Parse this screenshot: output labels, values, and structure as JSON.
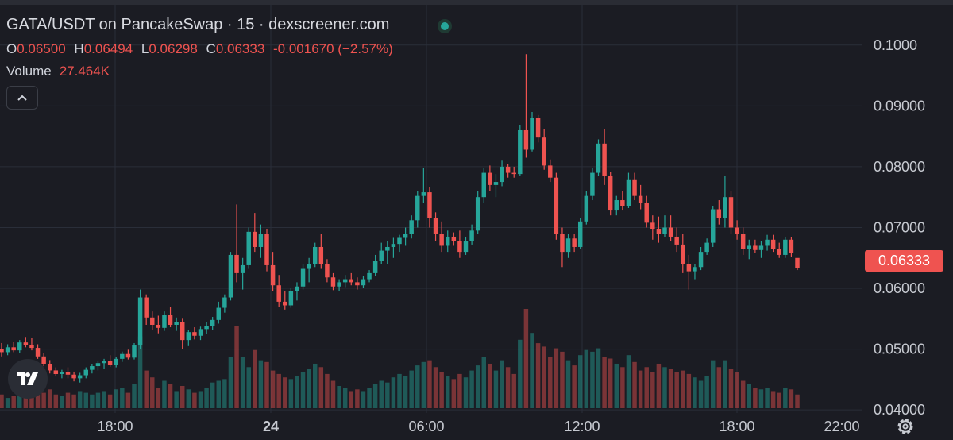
{
  "header": {
    "title": "GATA/USDT on PancakeSwap · 15 · dexscreener.com",
    "ohlc": {
      "o_label": "O",
      "o_value": "0.06500",
      "h_label": "H",
      "h_value": "0.06494",
      "l_label": "L",
      "l_value": "0.06298",
      "c_label": "C",
      "c_value": "0.06333",
      "change": "-0.001670 (−2.57%)"
    },
    "volume_label": "Volume",
    "volume_value": "27.464K"
  },
  "colors": {
    "up": "#26a69a",
    "down": "#ef5350",
    "background": "#1b1c23",
    "grid": "#2a2e39"
  },
  "icons": [
    "chevron-up-icon",
    "tradingview-logo-icon",
    "settings-gear-icon",
    "status-dot-icon"
  ],
  "chart_data": {
    "type": "candlestick",
    "title": "GATA/USDT on PancakeSwap · 15 · dexscreener.com",
    "last_price": "0.06333",
    "last_price_value": 0.06333,
    "y_ticks": [
      "0.1000",
      "0.09000",
      "0.08000",
      "0.07000",
      "0.06000",
      "0.05000",
      "0.04000"
    ],
    "y_tick_values": [
      0.1,
      0.09,
      0.08,
      0.07,
      0.06,
      0.05,
      0.04
    ],
    "x_ticks": [
      "18:00",
      "24",
      "06:00",
      "12:00",
      "18:00",
      "22:00"
    ],
    "ylim": [
      0.0395,
      0.1035
    ],
    "grid": true,
    "candles": [
      [
        0.05,
        0.051,
        0.0488,
        0.0495,
        8
      ],
      [
        0.0495,
        0.0508,
        0.049,
        0.0503,
        6
      ],
      [
        0.0503,
        0.0512,
        0.0495,
        0.0498,
        7
      ],
      [
        0.0498,
        0.0515,
        0.0494,
        0.0511,
        9
      ],
      [
        0.0511,
        0.052,
        0.0503,
        0.0507,
        7
      ],
      [
        0.0507,
        0.0519,
        0.0498,
        0.0502,
        8
      ],
      [
        0.0502,
        0.0508,
        0.0484,
        0.0488,
        10
      ],
      [
        0.0488,
        0.0494,
        0.0472,
        0.0476,
        9
      ],
      [
        0.0476,
        0.0482,
        0.046,
        0.0465,
        11
      ],
      [
        0.0465,
        0.047,
        0.0455,
        0.0459,
        8
      ],
      [
        0.0459,
        0.0466,
        0.0452,
        0.0462,
        7
      ],
      [
        0.0462,
        0.047,
        0.0452,
        0.0458,
        9
      ],
      [
        0.0458,
        0.0463,
        0.0447,
        0.0452,
        8
      ],
      [
        0.0452,
        0.0461,
        0.0445,
        0.0457,
        10
      ],
      [
        0.0457,
        0.047,
        0.0452,
        0.0466,
        9
      ],
      [
        0.0466,
        0.0476,
        0.046,
        0.0472,
        8
      ],
      [
        0.0472,
        0.0481,
        0.0465,
        0.0477,
        9
      ],
      [
        0.0477,
        0.0484,
        0.0468,
        0.048,
        10
      ],
      [
        0.048,
        0.049,
        0.0471,
        0.0474,
        8
      ],
      [
        0.0474,
        0.0487,
        0.047,
        0.0484,
        11
      ],
      [
        0.0484,
        0.0496,
        0.0479,
        0.0492,
        12
      ],
      [
        0.0492,
        0.0499,
        0.0483,
        0.0486,
        9
      ],
      [
        0.0486,
        0.051,
        0.0483,
        0.0506,
        14
      ],
      [
        0.0506,
        0.0598,
        0.05,
        0.0585,
        42
      ],
      [
        0.0585,
        0.059,
        0.054,
        0.0552,
        22
      ],
      [
        0.0552,
        0.0562,
        0.0532,
        0.054,
        18
      ],
      [
        0.054,
        0.0555,
        0.0526,
        0.0535,
        12
      ],
      [
        0.0535,
        0.0562,
        0.053,
        0.0556,
        16
      ],
      [
        0.0556,
        0.057,
        0.0536,
        0.054,
        14
      ],
      [
        0.054,
        0.0552,
        0.053,
        0.0545,
        10
      ],
      [
        0.0545,
        0.055,
        0.05,
        0.0515,
        13
      ],
      [
        0.0515,
        0.0532,
        0.0505,
        0.0528,
        11
      ],
      [
        0.0528,
        0.0536,
        0.0516,
        0.0522,
        9
      ],
      [
        0.0522,
        0.0537,
        0.0515,
        0.0533,
        10
      ],
      [
        0.0533,
        0.0544,
        0.0525,
        0.0538,
        12
      ],
      [
        0.0538,
        0.0553,
        0.0532,
        0.0548,
        15
      ],
      [
        0.0548,
        0.0578,
        0.0542,
        0.0568,
        16
      ],
      [
        0.0568,
        0.059,
        0.056,
        0.0585,
        17
      ],
      [
        0.0585,
        0.066,
        0.058,
        0.0655,
        30
      ],
      [
        0.0655,
        0.0738,
        0.061,
        0.0625,
        48
      ],
      [
        0.0625,
        0.065,
        0.0598,
        0.0638,
        30
      ],
      [
        0.0638,
        0.07,
        0.0632,
        0.0693,
        24
      ],
      [
        0.0693,
        0.0724,
        0.066,
        0.0668,
        34
      ],
      [
        0.0668,
        0.0705,
        0.065,
        0.069,
        28
      ],
      [
        0.069,
        0.0698,
        0.0628,
        0.0638,
        27
      ],
      [
        0.0638,
        0.066,
        0.0595,
        0.0605,
        22
      ],
      [
        0.0605,
        0.0622,
        0.057,
        0.0578,
        20
      ],
      [
        0.0578,
        0.0596,
        0.0565,
        0.0572,
        18
      ],
      [
        0.0572,
        0.06,
        0.0568,
        0.0595,
        17
      ],
      [
        0.0595,
        0.061,
        0.058,
        0.0603,
        19
      ],
      [
        0.0603,
        0.064,
        0.0598,
        0.0632,
        21
      ],
      [
        0.0632,
        0.065,
        0.061,
        0.064,
        23
      ],
      [
        0.064,
        0.0675,
        0.0635,
        0.0668,
        26
      ],
      [
        0.0668,
        0.069,
        0.0632,
        0.064,
        24
      ],
      [
        0.064,
        0.0648,
        0.061,
        0.0618,
        20
      ],
      [
        0.0618,
        0.0625,
        0.0597,
        0.0603,
        16
      ],
      [
        0.0603,
        0.0615,
        0.0595,
        0.061,
        13
      ],
      [
        0.061,
        0.0622,
        0.0602,
        0.0615,
        12
      ],
      [
        0.0615,
        0.0625,
        0.0605,
        0.061,
        10
      ],
      [
        0.061,
        0.0618,
        0.0598,
        0.0605,
        11
      ],
      [
        0.0605,
        0.062,
        0.0601,
        0.0615,
        10
      ],
      [
        0.0615,
        0.063,
        0.061,
        0.0625,
        12
      ],
      [
        0.0625,
        0.0655,
        0.062,
        0.0645,
        14
      ],
      [
        0.0645,
        0.0675,
        0.064,
        0.0662,
        16
      ],
      [
        0.0662,
        0.0678,
        0.064,
        0.0668,
        15
      ],
      [
        0.0668,
        0.0683,
        0.065,
        0.0673,
        18
      ],
      [
        0.0673,
        0.0688,
        0.066,
        0.0683,
        20
      ],
      [
        0.0683,
        0.07,
        0.067,
        0.069,
        19
      ],
      [
        0.069,
        0.072,
        0.0682,
        0.0712,
        22
      ],
      [
        0.0712,
        0.076,
        0.07,
        0.0752,
        25
      ],
      [
        0.0752,
        0.0798,
        0.074,
        0.0758,
        27
      ],
      [
        0.0758,
        0.0766,
        0.07,
        0.0715,
        28
      ],
      [
        0.0715,
        0.0725,
        0.0678,
        0.069,
        24
      ],
      [
        0.069,
        0.071,
        0.066,
        0.067,
        21
      ],
      [
        0.067,
        0.0695,
        0.066,
        0.0685,
        19
      ],
      [
        0.0685,
        0.0692,
        0.067,
        0.0678,
        17
      ],
      [
        0.0678,
        0.0695,
        0.065,
        0.066,
        20
      ],
      [
        0.066,
        0.0685,
        0.0655,
        0.0678,
        18
      ],
      [
        0.0678,
        0.0705,
        0.0672,
        0.0695,
        22
      ],
      [
        0.0695,
        0.076,
        0.069,
        0.075,
        25
      ],
      [
        0.075,
        0.0798,
        0.074,
        0.079,
        30
      ],
      [
        0.079,
        0.0802,
        0.076,
        0.077,
        26
      ],
      [
        0.077,
        0.0788,
        0.075,
        0.0775,
        22
      ],
      [
        0.0775,
        0.081,
        0.0768,
        0.08,
        28
      ],
      [
        0.08,
        0.0805,
        0.0782,
        0.079,
        24
      ],
      [
        0.079,
        0.08,
        0.0782,
        0.0788,
        20
      ],
      [
        0.0788,
        0.0868,
        0.0785,
        0.086,
        40
      ],
      [
        0.086,
        0.0985,
        0.0815,
        0.0828,
        58
      ],
      [
        0.0828,
        0.089,
        0.0825,
        0.088,
        44
      ],
      [
        0.088,
        0.0885,
        0.084,
        0.0848,
        38
      ],
      [
        0.0848,
        0.0862,
        0.0795,
        0.0802,
        36
      ],
      [
        0.0802,
        0.0812,
        0.0775,
        0.0782,
        30
      ],
      [
        0.0782,
        0.079,
        0.068,
        0.069,
        35
      ],
      [
        0.069,
        0.07,
        0.0635,
        0.066,
        33
      ],
      [
        0.066,
        0.069,
        0.065,
        0.0682,
        28
      ],
      [
        0.0682,
        0.069,
        0.066,
        0.0668,
        25
      ],
      [
        0.0668,
        0.0715,
        0.0665,
        0.071,
        31
      ],
      [
        0.071,
        0.076,
        0.0705,
        0.0752,
        34
      ],
      [
        0.0752,
        0.0798,
        0.0745,
        0.079,
        33
      ],
      [
        0.079,
        0.0845,
        0.0785,
        0.0838,
        35
      ],
      [
        0.0838,
        0.0862,
        0.077,
        0.0785,
        30
      ],
      [
        0.0785,
        0.0792,
        0.072,
        0.0728,
        29
      ],
      [
        0.0728,
        0.0752,
        0.072,
        0.0745,
        26
      ],
      [
        0.0745,
        0.076,
        0.0728,
        0.0735,
        24
      ],
      [
        0.0735,
        0.079,
        0.0732,
        0.0778,
        31
      ],
      [
        0.0778,
        0.079,
        0.0745,
        0.0752,
        27
      ],
      [
        0.0752,
        0.077,
        0.073,
        0.074,
        22
      ],
      [
        0.074,
        0.0752,
        0.07,
        0.0708,
        24
      ],
      [
        0.0708,
        0.072,
        0.068,
        0.0698,
        21
      ],
      [
        0.0698,
        0.0718,
        0.0675,
        0.069,
        26
      ],
      [
        0.069,
        0.072,
        0.0685,
        0.07,
        24
      ],
      [
        0.07,
        0.072,
        0.0678,
        0.0685,
        23
      ],
      [
        0.0685,
        0.07,
        0.066,
        0.0672,
        21
      ],
      [
        0.0672,
        0.069,
        0.0625,
        0.064,
        22
      ],
      [
        0.064,
        0.0655,
        0.0598,
        0.0628,
        20
      ],
      [
        0.0628,
        0.064,
        0.0615,
        0.0635,
        18
      ],
      [
        0.0635,
        0.0668,
        0.063,
        0.066,
        16
      ],
      [
        0.066,
        0.0682,
        0.0655,
        0.0675,
        19
      ],
      [
        0.0675,
        0.0735,
        0.0668,
        0.073,
        28
      ],
      [
        0.073,
        0.0745,
        0.0705,
        0.0715,
        24
      ],
      [
        0.0715,
        0.0785,
        0.07,
        0.075,
        28
      ],
      [
        0.075,
        0.076,
        0.069,
        0.07,
        23
      ],
      [
        0.07,
        0.0712,
        0.068,
        0.069,
        21
      ],
      [
        0.069,
        0.07,
        0.0655,
        0.0665,
        16
      ],
      [
        0.0665,
        0.068,
        0.0648,
        0.067,
        14
      ],
      [
        0.067,
        0.068,
        0.0658,
        0.0663,
        12
      ],
      [
        0.0663,
        0.0678,
        0.065,
        0.067,
        11
      ],
      [
        0.067,
        0.0688,
        0.0662,
        0.068,
        12
      ],
      [
        0.068,
        0.0688,
        0.066,
        0.0665,
        10
      ],
      [
        0.0665,
        0.0675,
        0.065,
        0.0655,
        9
      ],
      [
        0.0655,
        0.0685,
        0.065,
        0.068,
        12
      ],
      [
        0.068,
        0.0684,
        0.0652,
        0.0658,
        11
      ],
      [
        0.065,
        0.0649,
        0.063,
        0.0633,
        8
      ]
    ]
  }
}
